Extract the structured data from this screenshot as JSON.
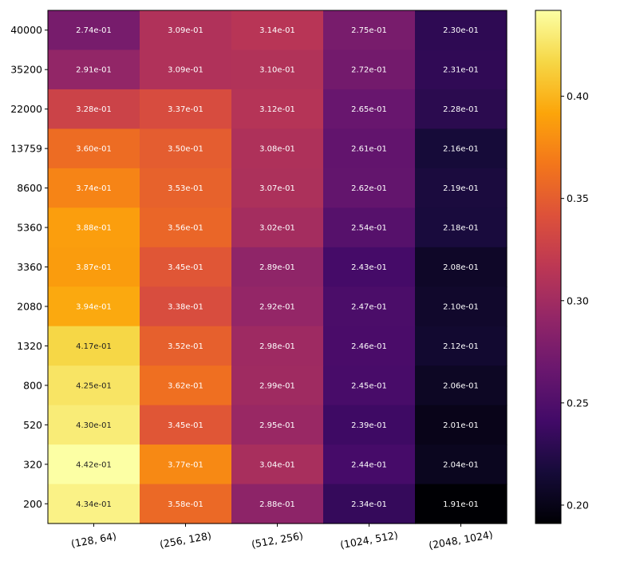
{
  "chart_data": {
    "type": "heatmap",
    "title": "",
    "xlabel": "",
    "ylabel": "",
    "x_categories": [
      "(128, 64)",
      "(256, 128)",
      "(512, 256)",
      "(1024, 512)",
      "(2048, 1024)"
    ],
    "y_categories": [
      "40000",
      "35200",
      "22000",
      "13759",
      "8600",
      "5360",
      "3360",
      "2080",
      "1320",
      "800",
      "520",
      "320",
      "200"
    ],
    "values": [
      [
        0.274,
        0.309,
        0.314,
        0.275,
        0.23
      ],
      [
        0.291,
        0.309,
        0.31,
        0.272,
        0.231
      ],
      [
        0.328,
        0.337,
        0.312,
        0.265,
        0.228
      ],
      [
        0.36,
        0.35,
        0.308,
        0.261,
        0.216
      ],
      [
        0.374,
        0.353,
        0.307,
        0.262,
        0.219
      ],
      [
        0.388,
        0.356,
        0.302,
        0.254,
        0.218
      ],
      [
        0.387,
        0.345,
        0.289,
        0.243,
        0.208
      ],
      [
        0.394,
        0.338,
        0.292,
        0.247,
        0.21
      ],
      [
        0.417,
        0.352,
        0.298,
        0.246,
        0.212
      ],
      [
        0.425,
        0.362,
        0.299,
        0.245,
        0.206
      ],
      [
        0.43,
        0.345,
        0.295,
        0.239,
        0.201
      ],
      [
        0.442,
        0.377,
        0.304,
        0.244,
        0.204
      ],
      [
        0.434,
        0.358,
        0.288,
        0.234,
        0.191
      ]
    ],
    "labels": [
      [
        "2.74e-01",
        "3.09e-01",
        "3.14e-01",
        "2.75e-01",
        "2.30e-01"
      ],
      [
        "2.91e-01",
        "3.09e-01",
        "3.10e-01",
        "2.72e-01",
        "2.31e-01"
      ],
      [
        "3.28e-01",
        "3.37e-01",
        "3.12e-01",
        "2.65e-01",
        "2.28e-01"
      ],
      [
        "3.60e-01",
        "3.50e-01",
        "3.08e-01",
        "2.61e-01",
        "2.16e-01"
      ],
      [
        "3.74e-01",
        "3.53e-01",
        "3.07e-01",
        "2.62e-01",
        "2.19e-01"
      ],
      [
        "3.88e-01",
        "3.56e-01",
        "3.02e-01",
        "2.54e-01",
        "2.18e-01"
      ],
      [
        "3.87e-01",
        "3.45e-01",
        "2.89e-01",
        "2.43e-01",
        "2.08e-01"
      ],
      [
        "3.94e-01",
        "3.38e-01",
        "2.92e-01",
        "2.47e-01",
        "2.10e-01"
      ],
      [
        "4.17e-01",
        "3.52e-01",
        "2.98e-01",
        "2.46e-01",
        "2.12e-01"
      ],
      [
        "4.25e-01",
        "3.62e-01",
        "2.99e-01",
        "2.45e-01",
        "2.06e-01"
      ],
      [
        "4.30e-01",
        "3.45e-01",
        "2.95e-01",
        "2.39e-01",
        "2.01e-01"
      ],
      [
        "4.42e-01",
        "3.77e-01",
        "3.04e-01",
        "2.44e-01",
        "2.04e-01"
      ],
      [
        "4.34e-01",
        "3.58e-01",
        "2.88e-01",
        "2.34e-01",
        "1.91e-01"
      ]
    ],
    "colormap": "inferno",
    "colorbar": {
      "range": [
        0.191,
        0.442
      ],
      "ticks": [
        0.2,
        0.25,
        0.3,
        0.35,
        0.4
      ],
      "tick_labels": [
        "0.20",
        "0.25",
        "0.30",
        "0.35",
        "0.40"
      ]
    },
    "label_colors": {
      "on_light": "#222222",
      "on_dark": "#ffffff"
    },
    "grid": false,
    "legend": "none"
  }
}
